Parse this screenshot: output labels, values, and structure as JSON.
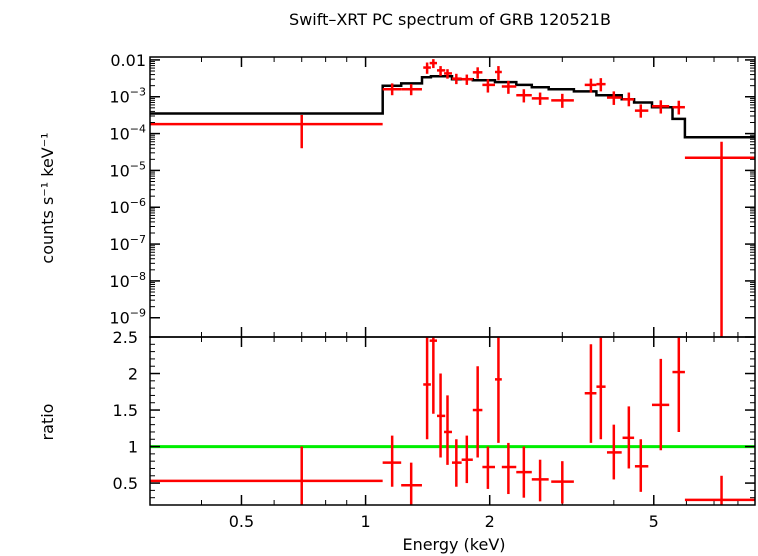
{
  "chart_data": [
    {
      "type": "scatter",
      "title": "Swift–XRT PC spectrum of GRB 120521B",
      "xlabel": "",
      "ylabel": "counts s⁻¹ keV⁻¹",
      "xscale": "log",
      "yscale": "log",
      "xlim": [
        0.3,
        8.8
      ],
      "ylim": [
        3e-10,
        0.012
      ],
      "ytick_labels": [
        {
          "base": "0.01",
          "exp": ""
        },
        {
          "base": "10",
          "exp": "−3"
        },
        {
          "base": "10",
          "exp": "−4"
        },
        {
          "base": "10",
          "exp": "−5"
        },
        {
          "base": "10",
          "exp": "−6"
        },
        {
          "base": "10",
          "exp": "−7"
        },
        {
          "base": "10",
          "exp": "−8"
        },
        {
          "base": "10",
          "exp": "−9"
        }
      ],
      "ytick_values": [
        0.01,
        0.001,
        0.0001,
        1e-05,
        1e-06,
        1e-07,
        1e-08,
        1e-09
      ],
      "colors": {
        "data": "#ff0000",
        "model": "#000000"
      },
      "series": [
        {
          "kind": "data-with-errors",
          "points": [
            {
              "x": 0.7,
              "xlo": 0.3,
              "xhi": 1.1,
              "y": 0.00018,
              "ylo": 4e-05,
              "yhi": 0.00032
            },
            {
              "x": 1.16,
              "xlo": 1.1,
              "xhi": 1.22,
              "y": 0.0016,
              "ylo": 0.0011,
              "yhi": 0.0023
            },
            {
              "x": 1.29,
              "xlo": 1.22,
              "xhi": 1.37,
              "y": 0.0016,
              "ylo": 0.0011,
              "yhi": 0.0022
            },
            {
              "x": 1.41,
              "xlo": 1.38,
              "xhi": 1.44,
              "y": 0.0062,
              "ylo": 0.0042,
              "yhi": 0.0085
            },
            {
              "x": 1.46,
              "xlo": 1.43,
              "xhi": 1.49,
              "y": 0.0082,
              "ylo": 0.006,
              "yhi": 0.0105
            },
            {
              "x": 1.52,
              "xlo": 1.49,
              "xhi": 1.56,
              "y": 0.0052,
              "ylo": 0.0037,
              "yhi": 0.0068
            },
            {
              "x": 1.58,
              "xlo": 1.55,
              "xhi": 1.62,
              "y": 0.0043,
              "ylo": 0.0031,
              "yhi": 0.0056
            },
            {
              "x": 1.66,
              "xlo": 1.62,
              "xhi": 1.71,
              "y": 0.0031,
              "ylo": 0.0022,
              "yhi": 0.0042
            },
            {
              "x": 1.76,
              "xlo": 1.71,
              "xhi": 1.82,
              "y": 0.003,
              "ylo": 0.0021,
              "yhi": 0.004
            },
            {
              "x": 1.87,
              "xlo": 1.82,
              "xhi": 1.92,
              "y": 0.0046,
              "ylo": 0.0031,
              "yhi": 0.0063
            },
            {
              "x": 1.98,
              "xlo": 1.92,
              "xhi": 2.06,
              "y": 0.0021,
              "ylo": 0.0013,
              "yhi": 0.003
            },
            {
              "x": 2.1,
              "xlo": 2.06,
              "xhi": 2.14,
              "y": 0.0047,
              "ylo": 0.0028,
              "yhi": 0.0068
            },
            {
              "x": 2.22,
              "xlo": 2.14,
              "xhi": 2.32,
              "y": 0.0019,
              "ylo": 0.0012,
              "yhi": 0.0027
            },
            {
              "x": 2.42,
              "xlo": 2.32,
              "xhi": 2.53,
              "y": 0.0011,
              "ylo": 0.0007,
              "yhi": 0.0016
            },
            {
              "x": 2.65,
              "xlo": 2.53,
              "xhi": 2.78,
              "y": 0.0009,
              "ylo": 0.0006,
              "yhi": 0.0013
            },
            {
              "x": 3.0,
              "xlo": 2.82,
              "xhi": 3.2,
              "y": 0.0008,
              "ylo": 0.0005,
              "yhi": 0.0012
            },
            {
              "x": 3.52,
              "xlo": 3.4,
              "xhi": 3.63,
              "y": 0.0021,
              "ylo": 0.0013,
              "yhi": 0.0031
            },
            {
              "x": 3.72,
              "xlo": 3.63,
              "xhi": 3.82,
              "y": 0.0022,
              "ylo": 0.0014,
              "yhi": 0.0032
            },
            {
              "x": 4.0,
              "xlo": 3.85,
              "xhi": 4.18,
              "y": 0.00095,
              "ylo": 0.0006,
              "yhi": 0.0014
            },
            {
              "x": 4.35,
              "xlo": 4.2,
              "xhi": 4.48,
              "y": 0.00085,
              "ylo": 0.00055,
              "yhi": 0.0013
            },
            {
              "x": 4.65,
              "xlo": 4.5,
              "xhi": 4.85,
              "y": 0.00042,
              "ylo": 0.00027,
              "yhi": 0.00062
            },
            {
              "x": 5.2,
              "xlo": 4.95,
              "xhi": 5.45,
              "y": 0.00055,
              "ylo": 0.00035,
              "yhi": 0.0008
            },
            {
              "x": 5.75,
              "xlo": 5.55,
              "xhi": 5.95,
              "y": 0.00052,
              "ylo": 0.00033,
              "yhi": 0.00078
            },
            {
              "x": 7.3,
              "xlo": 5.95,
              "xhi": 8.8,
              "y": 2.2e-05,
              "ylo": 3e-10,
              "yhi": 6e-05
            }
          ]
        },
        {
          "kind": "model-step",
          "edges": [
            0.3,
            1.1,
            1.22,
            1.37,
            1.44,
            1.62,
            1.82,
            2.06,
            2.32,
            2.53,
            2.78,
            3.2,
            3.63,
            4.18,
            4.48,
            4.95,
            5.55,
            5.95,
            8.8
          ],
          "values": [
            0.00035,
            0.002,
            0.0023,
            0.0034,
            0.0036,
            0.003,
            0.0028,
            0.0025,
            0.0021,
            0.0018,
            0.0016,
            0.0014,
            0.0011,
            0.00085,
            0.0007,
            0.00052,
            0.00025,
            8e-05
          ]
        }
      ]
    },
    {
      "type": "scatter",
      "title": "",
      "xlabel": "Energy (keV)",
      "ylabel": "ratio",
      "xscale": "log",
      "yscale": "linear",
      "xlim": [
        0.3,
        8.8
      ],
      "ylim": [
        0.2,
        2.5
      ],
      "yticks": [
        0.5,
        1,
        1.5,
        2,
        2.5
      ],
      "ytick_labels": [
        "0.5",
        "1",
        "1.5",
        "2",
        "2.5"
      ],
      "xticks": [
        0.5,
        1,
        2,
        5
      ],
      "xtick_labels": [
        "0.5",
        "1",
        "2",
        "5"
      ],
      "reference_line": {
        "y": 1,
        "color": "#00ee00"
      },
      "colors": {
        "data": "#ff0000"
      },
      "series": [
        {
          "kind": "ratio-with-errors",
          "points": [
            {
              "x": 0.7,
              "xlo": 0.3,
              "xhi": 1.1,
              "y": 0.53,
              "ylo": 0.2,
              "yhi": 1.0
            },
            {
              "x": 1.16,
              "xlo": 1.1,
              "xhi": 1.22,
              "y": 0.78,
              "ylo": 0.45,
              "yhi": 1.15
            },
            {
              "x": 1.29,
              "xlo": 1.22,
              "xhi": 1.37,
              "y": 0.47,
              "ylo": 0.2,
              "yhi": 0.78
            },
            {
              "x": 1.41,
              "xlo": 1.38,
              "xhi": 1.44,
              "y": 1.85,
              "ylo": 1.1,
              "yhi": 2.5
            },
            {
              "x": 1.46,
              "xlo": 1.43,
              "xhi": 1.49,
              "y": 2.45,
              "ylo": 1.45,
              "yhi": 2.5
            },
            {
              "x": 1.52,
              "xlo": 1.49,
              "xhi": 1.56,
              "y": 1.42,
              "ylo": 0.85,
              "yhi": 2.0
            },
            {
              "x": 1.58,
              "xlo": 1.55,
              "xhi": 1.62,
              "y": 1.2,
              "ylo": 0.75,
              "yhi": 1.7
            },
            {
              "x": 1.66,
              "xlo": 1.62,
              "xhi": 1.71,
              "y": 0.78,
              "ylo": 0.45,
              "yhi": 1.1
            },
            {
              "x": 1.76,
              "xlo": 1.71,
              "xhi": 1.82,
              "y": 0.82,
              "ylo": 0.5,
              "yhi": 1.15
            },
            {
              "x": 1.87,
              "xlo": 1.82,
              "xhi": 1.92,
              "y": 1.5,
              "ylo": 0.85,
              "yhi": 2.1
            },
            {
              "x": 1.98,
              "xlo": 1.92,
              "xhi": 2.06,
              "y": 0.72,
              "ylo": 0.42,
              "yhi": 1.0
            },
            {
              "x": 2.1,
              "xlo": 2.06,
              "xhi": 2.14,
              "y": 1.92,
              "ylo": 1.05,
              "yhi": 2.5
            },
            {
              "x": 2.22,
              "xlo": 2.14,
              "xhi": 2.32,
              "y": 0.72,
              "ylo": 0.35,
              "yhi": 1.05
            },
            {
              "x": 2.42,
              "xlo": 2.32,
              "xhi": 2.53,
              "y": 0.65,
              "ylo": 0.3,
              "yhi": 1.0
            },
            {
              "x": 2.65,
              "xlo": 2.53,
              "xhi": 2.78,
              "y": 0.55,
              "ylo": 0.25,
              "yhi": 0.82
            },
            {
              "x": 3.0,
              "xlo": 2.82,
              "xhi": 3.2,
              "y": 0.52,
              "ylo": 0.22,
              "yhi": 0.8
            },
            {
              "x": 3.52,
              "xlo": 3.4,
              "xhi": 3.63,
              "y": 1.73,
              "ylo": 1.05,
              "yhi": 2.4
            },
            {
              "x": 3.72,
              "xlo": 3.63,
              "xhi": 3.82,
              "y": 1.82,
              "ylo": 1.1,
              "yhi": 2.5
            },
            {
              "x": 4.0,
              "xlo": 3.85,
              "xhi": 4.18,
              "y": 0.92,
              "ylo": 0.55,
              "yhi": 1.3
            },
            {
              "x": 4.35,
              "xlo": 4.2,
              "xhi": 4.48,
              "y": 1.12,
              "ylo": 0.7,
              "yhi": 1.55
            },
            {
              "x": 4.65,
              "xlo": 4.5,
              "xhi": 4.85,
              "y": 0.73,
              "ylo": 0.38,
              "yhi": 1.1
            },
            {
              "x": 5.2,
              "xlo": 4.95,
              "xhi": 5.45,
              "y": 1.57,
              "ylo": 0.95,
              "yhi": 2.2
            },
            {
              "x": 5.75,
              "xlo": 5.55,
              "xhi": 5.95,
              "y": 2.02,
              "ylo": 1.2,
              "yhi": 2.5
            },
            {
              "x": 7.3,
              "xlo": 5.95,
              "xhi": 8.8,
              "y": 0.27,
              "ylo": 0.2,
              "yhi": 0.6
            }
          ]
        }
      ]
    }
  ]
}
